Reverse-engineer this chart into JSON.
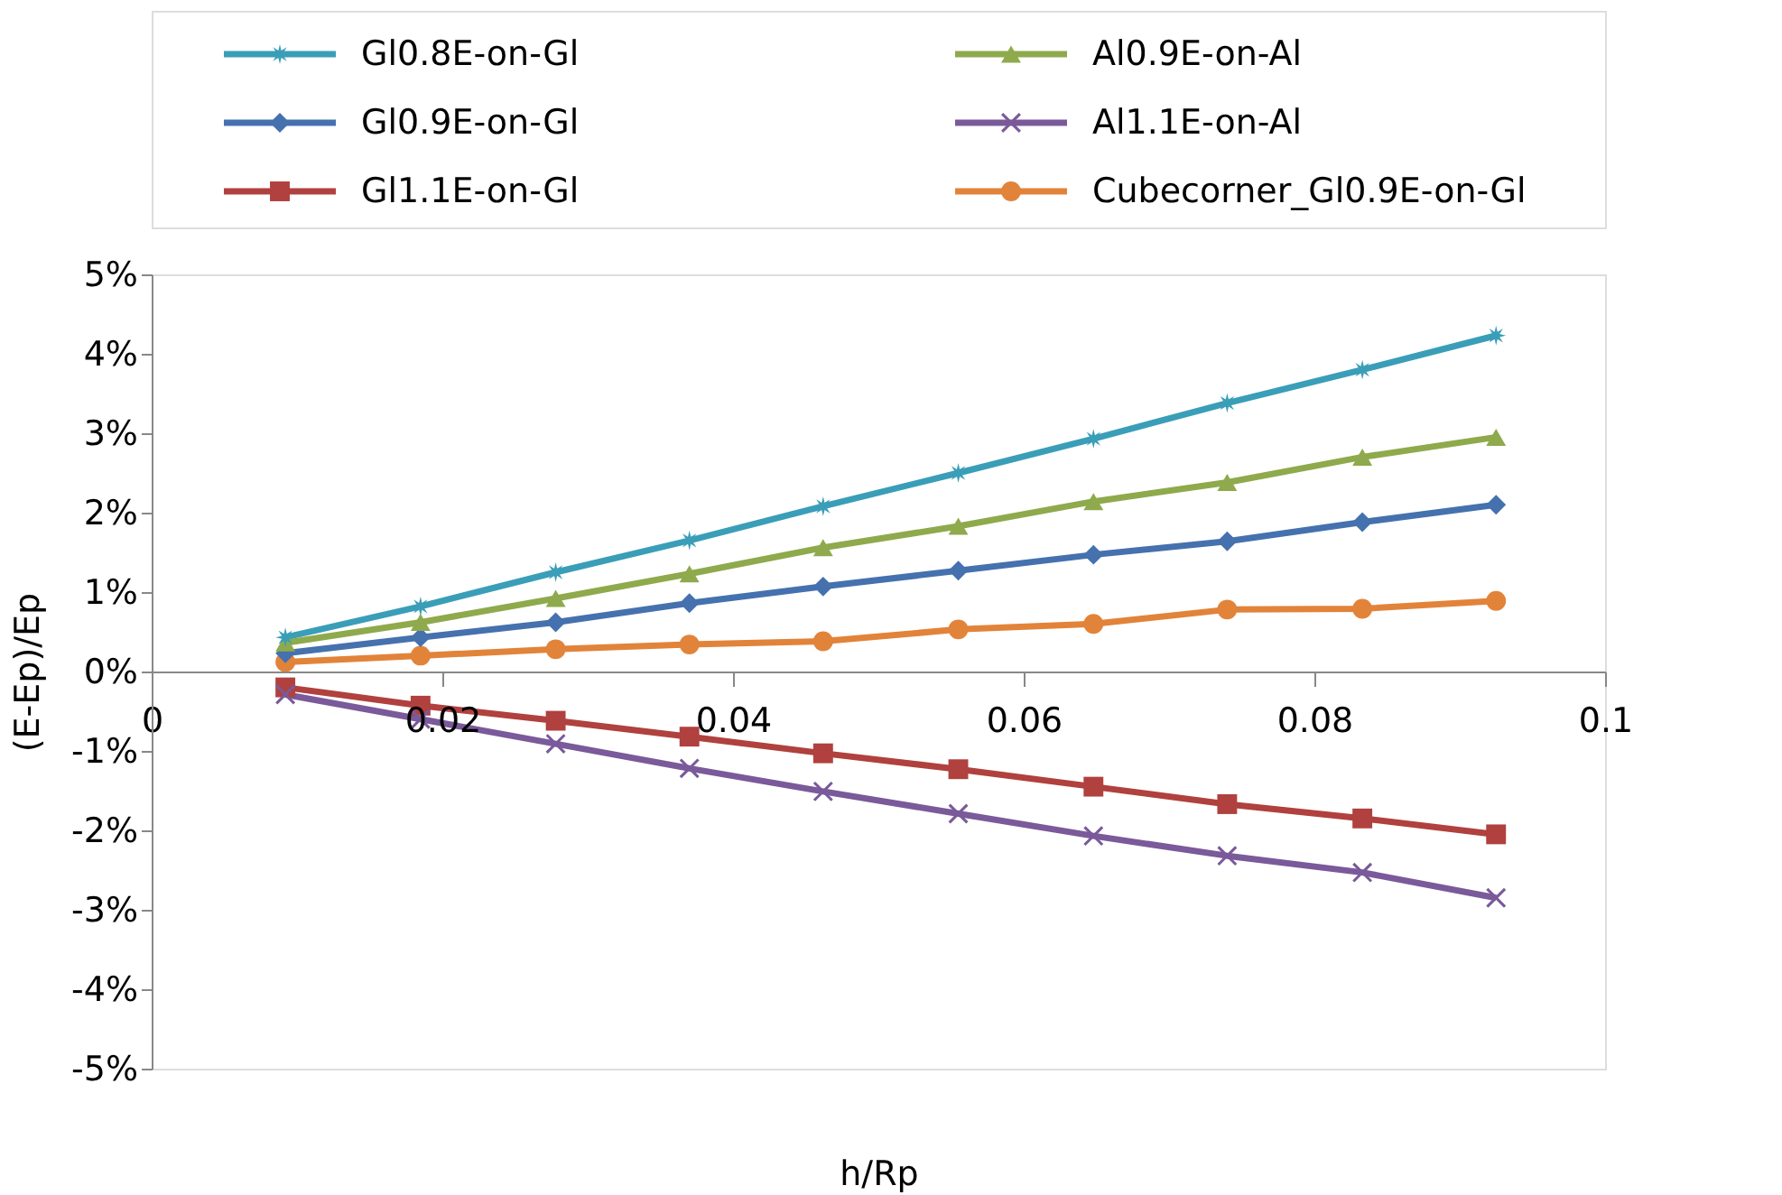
{
  "chart_data": {
    "type": "line",
    "xlabel": "h/Rp",
    "ylabel": "(E-Ep)/Ep",
    "x": [
      0.0092,
      0.0185,
      0.0278,
      0.037,
      0.0462,
      0.0555,
      0.0648,
      0.074,
      0.0833,
      0.0925
    ],
    "series": [
      {
        "name": "Gl0.8E-on-Gl",
        "color": "#3a9eb8",
        "marker": "star",
        "values": [
          0.43,
          0.82,
          1.25,
          1.65,
          2.08,
          2.5,
          2.93,
          3.38,
          3.8,
          4.23
        ]
      },
      {
        "name": "Al0.9E-on-Al",
        "color": "#8eaa4c",
        "marker": "triangle",
        "values": [
          0.36,
          0.62,
          0.92,
          1.23,
          1.56,
          1.83,
          2.14,
          2.38,
          2.7,
          2.95
        ]
      },
      {
        "name": "Gl0.9E-on-Gl",
        "color": "#4571ae",
        "marker": "diamond",
        "values": [
          0.23,
          0.43,
          0.62,
          0.86,
          1.07,
          1.27,
          1.47,
          1.64,
          1.88,
          2.1
        ]
      },
      {
        "name": "Al1.1E-on-Al",
        "color": "#7a5a9a",
        "marker": "cross",
        "values": [
          -0.29,
          -0.6,
          -0.91,
          -1.22,
          -1.51,
          -1.79,
          -2.07,
          -2.32,
          -2.53,
          -2.85
        ]
      },
      {
        "name": "Gl1.1E-on-Gl",
        "color": "#b0413e",
        "marker": "square",
        "values": [
          -0.2,
          -0.43,
          -0.62,
          -0.82,
          -1.03,
          -1.23,
          -1.45,
          -1.67,
          -1.85,
          -2.05
        ]
      },
      {
        "name": "Cubecorner_Gl0.9E-on-Gl",
        "color": "#e2833a",
        "marker": "circle",
        "values": [
          0.12,
          0.2,
          0.28,
          0.34,
          0.38,
          0.53,
          0.6,
          0.78,
          0.79,
          0.89
        ]
      }
    ],
    "xlim": [
      0,
      0.1
    ],
    "xticks": [
      0,
      0.02,
      0.04,
      0.06,
      0.08,
      0.1
    ],
    "ylim": [
      -5,
      5
    ],
    "yticks": [
      {
        "value": -5,
        "label": "-5%"
      },
      {
        "value": -4,
        "label": "-4%"
      },
      {
        "value": -3,
        "label": "-3%"
      },
      {
        "value": -2,
        "label": "-2%"
      },
      {
        "value": -1,
        "label": "-1%"
      },
      {
        "value": 0,
        "label": "0%"
      },
      {
        "value": 1,
        "label": "1%"
      },
      {
        "value": 2,
        "label": "2%"
      },
      {
        "value": 3,
        "label": "3%"
      },
      {
        "value": 4,
        "label": "4%"
      },
      {
        "value": 5,
        "label": "5%"
      }
    ],
    "grid": false,
    "legend": "top",
    "line_style": "solid"
  }
}
